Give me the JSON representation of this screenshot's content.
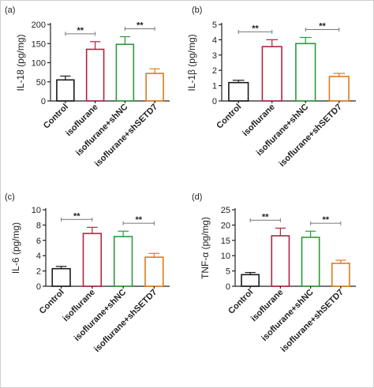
{
  "colors": {
    "Control": "#1a1a1a",
    "isoflurane": "#b0243f",
    "isoflurane+shNC": "#2a9a3a",
    "isoflurane+shSETD7": "#e07a1a"
  },
  "chart_data": [
    {
      "type": "bar",
      "panel": "(a)",
      "ylabel": "IL-18 (pg/mg)",
      "ylim": [
        0,
        200
      ],
      "yticks": [
        0,
        50,
        100,
        150,
        200
      ],
      "categories": [
        "Control",
        "isoflurane",
        "isoflurane+shNC",
        "isoflurane+shSETD7"
      ],
      "values": [
        55,
        135,
        148,
        72
      ],
      "errors": [
        10,
        20,
        20,
        12
      ],
      "significance": [
        {
          "from": 0,
          "to": 1,
          "label": "**"
        },
        {
          "from": 2,
          "to": 3,
          "label": "**"
        }
      ]
    },
    {
      "type": "bar",
      "panel": "(b)",
      "ylabel": "IL-1β (pg/mg)",
      "ylim": [
        0,
        5
      ],
      "yticks": [
        0,
        1,
        2,
        3,
        4,
        5
      ],
      "categories": [
        "Control",
        "isoflurane",
        "isoflurane+shNC",
        "isoflurane+shSETD7"
      ],
      "values": [
        1.2,
        3.55,
        3.75,
        1.6
      ],
      "errors": [
        0.15,
        0.45,
        0.4,
        0.2
      ],
      "significance": [
        {
          "from": 0,
          "to": 1,
          "label": "**"
        },
        {
          "from": 2,
          "to": 3,
          "label": "**"
        }
      ]
    },
    {
      "type": "bar",
      "panel": "(c)",
      "ylabel": "IL-6 (pg/mg)",
      "ylim": [
        0,
        10
      ],
      "yticks": [
        0,
        2,
        4,
        6,
        8,
        10
      ],
      "categories": [
        "Control",
        "isoflurane",
        "isoflurane+shNC",
        "isoflurane+shSETD7"
      ],
      "values": [
        2.3,
        6.9,
        6.5,
        3.8
      ],
      "errors": [
        0.3,
        0.8,
        0.7,
        0.5
      ],
      "significance": [
        {
          "from": 0,
          "to": 1,
          "label": "**"
        },
        {
          "from": 2,
          "to": 3,
          "label": "**"
        }
      ]
    },
    {
      "type": "bar",
      "panel": "(d)",
      "ylabel": "TNF-α (pg/mg)",
      "ylim": [
        0,
        25
      ],
      "yticks": [
        0,
        5,
        10,
        15,
        20,
        25
      ],
      "categories": [
        "Control",
        "isoflurane",
        "isoflurane+shNC",
        "isoflurane+shSETD7"
      ],
      "values": [
        3.8,
        16.5,
        16,
        7.5
      ],
      "errors": [
        0.7,
        2.5,
        2,
        1
      ],
      "significance": [
        {
          "from": 0,
          "to": 1,
          "label": "**"
        },
        {
          "from": 2,
          "to": 3,
          "label": "**"
        }
      ]
    }
  ]
}
